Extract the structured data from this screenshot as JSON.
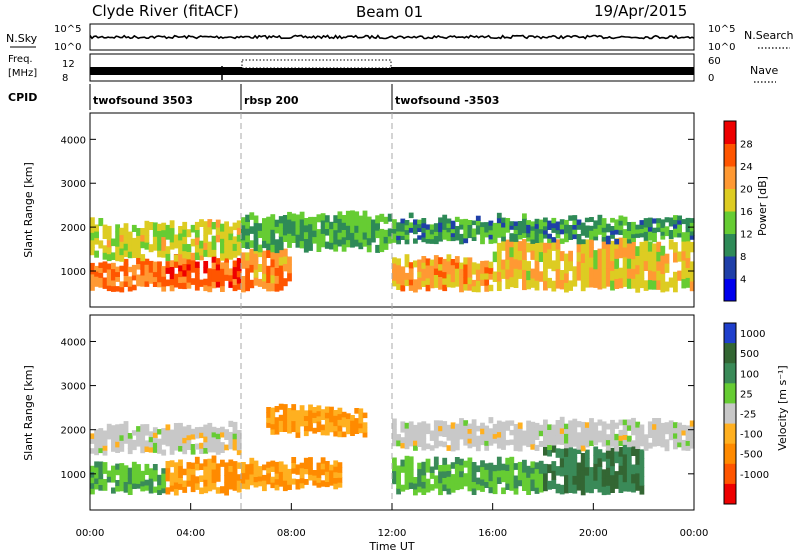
{
  "header": {
    "station": "Clyde River (fitACF)",
    "beam": "Beam 01",
    "date": "19/Apr/2015"
  },
  "top_panels": {
    "nsky_label": "N.Sky",
    "nsearch_label": "N.Search",
    "noise_ticks_left": [
      "10^5",
      "10^0"
    ],
    "noise_ticks_right": [
      "10^5",
      "10^0"
    ],
    "freq_label_1": "Freq.",
    "freq_label_2": "[MHz]",
    "freq_ticks": [
      "12",
      "8"
    ],
    "nave_label": "Nave",
    "nave_ticks": [
      "60",
      "0"
    ],
    "cpid_label": "CPID",
    "cpid_segments": [
      {
        "name": "twofsound 3503",
        "start_hour": 0
      },
      {
        "name": "rbsp 200",
        "start_hour": 6
      },
      {
        "name": "twofsound -3503",
        "start_hour": 12
      }
    ]
  },
  "colors": {
    "power_scale": [
      "#0000ee",
      "#1f3fa8",
      "#2e8a57",
      "#66cc33",
      "#ddcc22",
      "#ff9933",
      "#ff5500",
      "#ee0000"
    ],
    "velocity_scale": [
      "#1f3fcc",
      "#336633",
      "#3a8a58",
      "#66cc33",
      "#c8c8c8",
      "#ffb020",
      "#ff8a00",
      "#ff5500",
      "#ee0000"
    ]
  },
  "chart_data": [
    {
      "type": "heatmap",
      "panel": "power",
      "ylabel": "Slant Range [km]",
      "yticks": [
        1000,
        2000,
        3000,
        4000
      ],
      "ylim": [
        180,
        4600
      ],
      "xlim": [
        0,
        24
      ],
      "colorbar_label": "Power [dB]",
      "colorbar_ticks": [
        4,
        8,
        12,
        16,
        20,
        24,
        28
      ],
      "colorbar_range": [
        0,
        32
      ],
      "bands": [
        {
          "start": 0,
          "end": 3,
          "range_min": 600,
          "range_max": 1200,
          "value": 24
        },
        {
          "start": 3,
          "end": 6,
          "range_min": 600,
          "range_max": 1300,
          "value": 26
        },
        {
          "start": 0,
          "end": 6,
          "range_min": 1300,
          "range_max": 2100,
          "value": 17
        },
        {
          "start": 6,
          "end": 8,
          "range_min": 600,
          "range_max": 1500,
          "value": 22
        },
        {
          "start": 6,
          "end": 12,
          "range_min": 1500,
          "range_max": 2300,
          "value": 12
        },
        {
          "start": 12,
          "end": 16,
          "range_min": 600,
          "range_max": 1300,
          "value": 21
        },
        {
          "start": 16,
          "end": 24,
          "range_min": 600,
          "range_max": 1700,
          "value": 19
        },
        {
          "start": 12,
          "end": 24,
          "range_min": 1700,
          "range_max": 2200,
          "value": 11
        }
      ]
    },
    {
      "type": "heatmap",
      "panel": "velocity",
      "ylabel": "Slant Range [km]",
      "yticks": [
        1000,
        2000,
        3000,
        4000
      ],
      "ylim": [
        180,
        4600
      ],
      "xlim": [
        0,
        24
      ],
      "colorbar_label": "Velocity [m s⁻¹]",
      "colorbar_ticks": [
        1000,
        500,
        100,
        25,
        -25,
        -100,
        -500,
        -1000
      ],
      "bands": [
        {
          "start": 0,
          "end": 3,
          "range_min": 600,
          "range_max": 1200,
          "value": 100
        },
        {
          "start": 3,
          "end": 6,
          "range_min": 600,
          "range_max": 1300,
          "value": -100
        },
        {
          "start": 0,
          "end": 6,
          "range_min": 1500,
          "range_max": 2100,
          "value": 0
        },
        {
          "start": 6,
          "end": 10,
          "range_min": 700,
          "range_max": 1300,
          "value": -100
        },
        {
          "start": 7,
          "end": 11,
          "range_min": 1900,
          "range_max": 2500,
          "value": -100
        },
        {
          "start": 12,
          "end": 18,
          "range_min": 600,
          "range_max": 1300,
          "value": 100
        },
        {
          "start": 18,
          "end": 22,
          "range_min": 600,
          "range_max": 1600,
          "value": 500
        },
        {
          "start": 12,
          "end": 24,
          "range_min": 1600,
          "range_max": 2200,
          "value": 0
        }
      ]
    }
  ],
  "xaxis": {
    "label": "Time UT",
    "ticks": [
      {
        "hour": 0,
        "label": "00:00"
      },
      {
        "hour": 4,
        "label": "04:00"
      },
      {
        "hour": 8,
        "label": "08:00"
      },
      {
        "hour": 12,
        "label": "12:00"
      },
      {
        "hour": 16,
        "label": "16:00"
      },
      {
        "hour": 20,
        "label": "20:00"
      },
      {
        "hour": 24,
        "label": "00:00"
      }
    ]
  }
}
